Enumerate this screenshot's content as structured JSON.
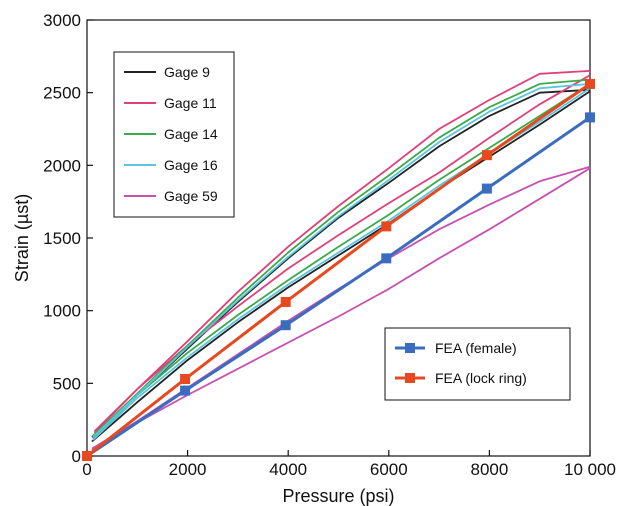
{
  "chart_data": {
    "type": "line",
    "xlabel": "Pressure (psi)",
    "ylabel": "Strain (µst)",
    "xlim": [
      0,
      10000
    ],
    "ylim": [
      0,
      3000
    ],
    "x_ticks": [
      0,
      2000,
      4000,
      6000,
      8000,
      10000
    ],
    "x_tick_labels": [
      "0",
      "2000",
      "4000",
      "6000",
      "8000",
      "10 000"
    ],
    "y_ticks": [
      0,
      500,
      1000,
      1500,
      2000,
      2500,
      3000
    ],
    "y_tick_labels": [
      "0",
      "500",
      "1000",
      "1500",
      "2000",
      "2500",
      "3000"
    ],
    "grid": false,
    "legends": [
      {
        "placement": "top-left",
        "entries": [
          "Gage 9",
          "Gage 11",
          "Gage 14",
          "Gage 16",
          "Gage 59"
        ]
      },
      {
        "placement": "bottom-right",
        "entries": [
          "FEA (female)",
          "FEA (lock ring)"
        ]
      }
    ],
    "series": [
      {
        "name": "Gage 9",
        "color": "#222222",
        "style": "line",
        "loading": {
          "x": [
            100,
            1000,
            2000,
            3000,
            4000,
            5000,
            6000,
            7000,
            8000,
            9000,
            10000
          ],
          "y": [
            100,
            370,
            660,
            920,
            1160,
            1380,
            1600,
            1840,
            2060,
            2280,
            2510
          ]
        },
        "unloading": {
          "x": [
            10000,
            9000,
            8000,
            7000,
            6000,
            5000,
            4000,
            3000,
            2000,
            1000,
            100
          ],
          "y": [
            2520,
            2500,
            2340,
            2130,
            1880,
            1640,
            1360,
            1060,
            740,
            420,
            130
          ]
        }
      },
      {
        "name": "Gage 11",
        "color": "#e0407a",
        "style": "line",
        "loading": {
          "x": [
            150,
            1000,
            2000,
            3000,
            4000,
            5000,
            6000,
            7000,
            8000,
            9000,
            10000
          ],
          "y": [
            160,
            460,
            760,
            1030,
            1290,
            1520,
            1740,
            1950,
            2190,
            2420,
            2620
          ]
        },
        "unloading": {
          "x": [
            10000,
            9000,
            8000,
            7000,
            6000,
            5000,
            4000,
            3000,
            2000,
            1000,
            150
          ],
          "y": [
            2650,
            2630,
            2450,
            2250,
            1980,
            1720,
            1440,
            1130,
            790,
            460,
            170
          ]
        }
      },
      {
        "name": "Gage 14",
        "color": "#3aaa4a",
        "style": "line",
        "loading": {
          "x": [
            120,
            1000,
            2000,
            3000,
            4000,
            5000,
            6000,
            7000,
            8000,
            9000,
            10000
          ],
          "y": [
            120,
            420,
            710,
            970,
            1210,
            1440,
            1660,
            1900,
            2120,
            2340,
            2560
          ]
        },
        "unloading": {
          "x": [
            10000,
            9000,
            8000,
            7000,
            6000,
            5000,
            4000,
            3000,
            2000,
            1000,
            120
          ],
          "y": [
            2590,
            2560,
            2400,
            2190,
            1930,
            1680,
            1400,
            1090,
            760,
            430,
            140
          ]
        }
      },
      {
        "name": "Gage 16",
        "color": "#5bc4e0",
        "style": "line",
        "loading": {
          "x": [
            120,
            1000,
            2000,
            3000,
            4000,
            5000,
            6000,
            7000,
            8000,
            9000,
            10000
          ],
          "y": [
            110,
            400,
            680,
            940,
            1180,
            1400,
            1620,
            1860,
            2080,
            2300,
            2530
          ]
        },
        "unloading": {
          "x": [
            10000,
            9000,
            8000,
            7000,
            6000,
            5000,
            4000,
            3000,
            2000,
            1000,
            120
          ],
          "y": [
            2560,
            2530,
            2370,
            2160,
            1900,
            1650,
            1370,
            1070,
            750,
            420,
            130
          ]
        }
      },
      {
        "name": "Gage 59",
        "color": "#c850b0",
        "style": "line",
        "loading": {
          "x": [
            100,
            1000,
            2000,
            3000,
            4000,
            5000,
            6000,
            7000,
            8000,
            9000,
            10000
          ],
          "y": [
            40,
            230,
            420,
            600,
            780,
            960,
            1150,
            1360,
            1560,
            1770,
            1980
          ]
        },
        "unloading": {
          "x": [
            10000,
            9000,
            8000,
            7000,
            6000,
            5000,
            4000,
            3000,
            2000,
            1000,
            100
          ],
          "y": [
            1990,
            1890,
            1730,
            1560,
            1360,
            1150,
            930,
            700,
            470,
            240,
            50
          ]
        }
      },
      {
        "name": "FEA (female)",
        "color": "#3a6cc0",
        "style": "line-marker",
        "x": [
          0,
          1950,
          3950,
          5950,
          7950,
          10000
        ],
        "y": [
          0,
          450,
          900,
          1360,
          1840,
          2330
        ]
      },
      {
        "name": "FEA (lock ring)",
        "color": "#e8481e",
        "style": "line-marker",
        "x": [
          0,
          1950,
          3950,
          5950,
          7950,
          10000
        ],
        "y": [
          0,
          530,
          1060,
          1580,
          2070,
          2560
        ]
      }
    ]
  }
}
